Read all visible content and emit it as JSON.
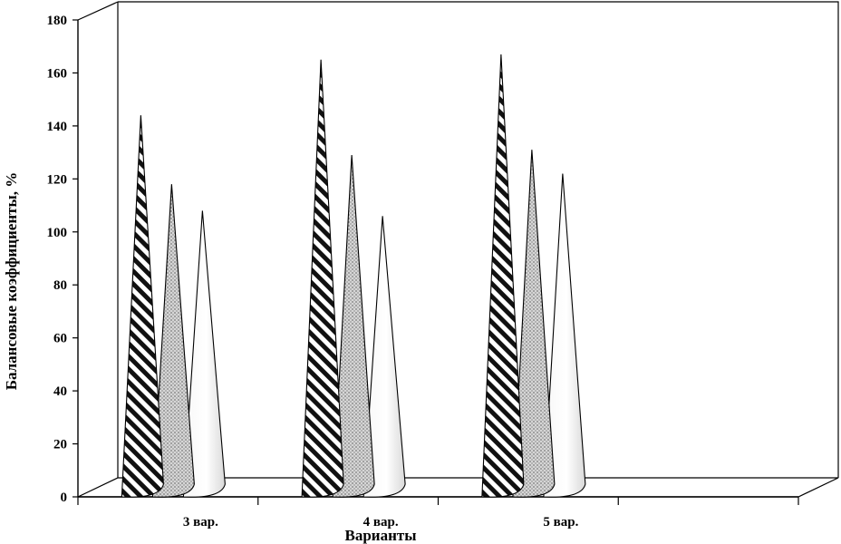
{
  "chart_data": {
    "type": "bar",
    "bar_shape": "cone",
    "categories": [
      "3 вар.",
      "4 вар.",
      "5 вар."
    ],
    "series": [
      {
        "values": [
          144,
          165,
          167
        ]
      },
      {
        "values": [
          118,
          129,
          131
        ]
      },
      {
        "values": [
          108,
          106,
          122
        ]
      }
    ],
    "xlabel": "Варианты",
    "ylabel": "Балансовые коэффициенты, %",
    "ylim": [
      0,
      180
    ],
    "yticks": [
      "0",
      "20",
      "40",
      "60",
      "80",
      "100",
      "120",
      "140",
      "160",
      "180"
    ],
    "grid": false
  }
}
